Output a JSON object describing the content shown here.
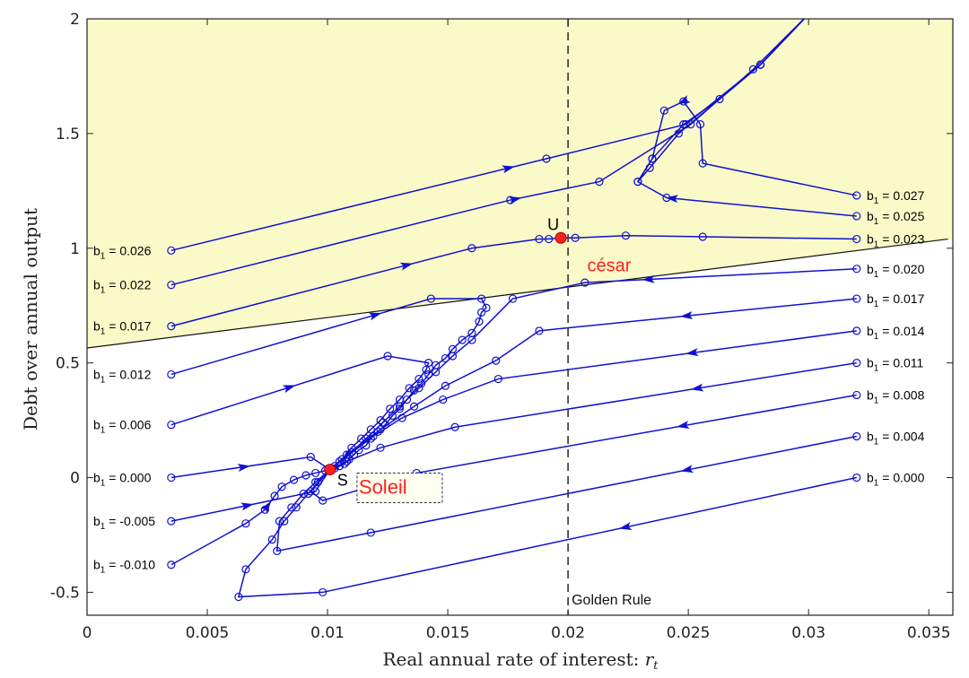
{
  "chart_data": {
    "type": "line",
    "xlabel": "Real annual rate of interest:",
    "xlabel_var": "r",
    "xlabel_sub": "t",
    "ylabel": "Debt over annual output",
    "xlim": [
      0,
      0.036
    ],
    "ylim": [
      -0.6,
      2.0
    ],
    "x_ticks": [
      "0",
      "0.005",
      "0.01",
      "0.015",
      "0.02",
      "0.025",
      "0.03",
      "0.035"
    ],
    "y_ticks": [
      "-0.5",
      "0",
      "0.5",
      "1",
      "1.5",
      "2"
    ],
    "grid": false,
    "shaded_region_color": "#fafac8",
    "series_color": "#1010d0",
    "golden_rule": {
      "x": 0.02,
      "label": "Golden Rule"
    },
    "boundary_line": {
      "x": [
        0,
        0.0358
      ],
      "y": [
        0.565,
        1.04
      ]
    },
    "points": [
      {
        "name": "U",
        "label": "U",
        "x": 0.0197,
        "y": 1.045,
        "color": "#ff2020"
      },
      {
        "name": "S",
        "label": "S",
        "x": 0.0101,
        "y": 0.035,
        "color": "#ff2020"
      }
    ],
    "annotations": [
      {
        "name": "cesar",
        "text": "césar",
        "x": 0.0208,
        "y": 0.9,
        "color": "#ff2020"
      },
      {
        "name": "soleil",
        "text": "Soleil",
        "x": 0.0113,
        "y": -0.07,
        "color": "#ff2020",
        "boxed": true
      }
    ],
    "left_labels": [
      {
        "text": "b",
        "sub": "1",
        "value": " = 0.026",
        "y": 0.99
      },
      {
        "text": "b",
        "sub": "1",
        "value": " = 0.022",
        "y": 0.84
      },
      {
        "text": "b",
        "sub": "1",
        "value": " = 0.017",
        "y": 0.66
      },
      {
        "text": "b",
        "sub": "1",
        "value": " = 0.012",
        "y": 0.45
      },
      {
        "text": "b",
        "sub": "1",
        "value": " = 0.006",
        "y": 0.23
      },
      {
        "text": "b",
        "sub": "1",
        "value": " = 0.000",
        "y": 0.0
      },
      {
        "text": "b",
        "sub": "1",
        "value": " = -0.005",
        "y": -0.19
      },
      {
        "text": "b",
        "sub": "1",
        "value": " = -0.010",
        "y": -0.38
      }
    ],
    "right_labels": [
      {
        "text": "b",
        "sub": "1",
        "value": " = 0.027",
        "y": 1.23
      },
      {
        "text": "b",
        "sub": "1",
        "value": " = 0.025",
        "y": 1.14
      },
      {
        "text": "b",
        "sub": "1",
        "value": " = 0.023",
        "y": 1.04
      },
      {
        "text": "b",
        "sub": "1",
        "value": " = 0.020",
        "y": 0.91
      },
      {
        "text": "b",
        "sub": "1",
        "value": " = 0.017",
        "y": 0.78
      },
      {
        "text": "b",
        "sub": "1",
        "value": " = 0.014",
        "y": 0.64
      },
      {
        "text": "b",
        "sub": "1",
        "value": " = 0.011",
        "y": 0.5
      },
      {
        "text": "b",
        "sub": "1",
        "value": " = 0.008",
        "y": 0.36
      },
      {
        "text": "b",
        "sub": "1",
        "value": " = 0.004",
        "y": 0.18
      },
      {
        "text": "b",
        "sub": "1",
        "value": " = 0.000",
        "y": 0.0
      }
    ],
    "series": [
      {
        "x": [
          0.0035,
          0.0191,
          0.0249,
          0.028,
          0.03
        ],
        "y": [
          0.99,
          1.39,
          1.54,
          1.8,
          2.02
        ],
        "arrow_at": 0.5
      },
      {
        "x": [
          0.0035,
          0.0176,
          0.0213,
          0.0251,
          0.0277,
          0.03
        ],
        "y": [
          0.84,
          1.21,
          1.29,
          1.54,
          1.78,
          2.02
        ],
        "arrow_at": 0.5
      },
      {
        "x": [
          0.0035,
          0.016,
          0.0188,
          0.0192,
          0.0197,
          0.0203,
          0.0224,
          0.0256,
          0.032
        ],
        "y": [
          0.66,
          1.0,
          1.04,
          1.04,
          1.045,
          1.045,
          1.055,
          1.05,
          1.04
        ],
        "arrow_at": 0.35
      },
      {
        "x": [
          0.0035,
          0.0143,
          0.0164,
          0.0166,
          0.0164,
          0.0163,
          0.016,
          0.0156,
          0.0152,
          0.0149,
          0.0145,
          0.0142,
          0.0139,
          0.0136,
          0.0133,
          0.013,
          0.0127,
          0.0124,
          0.0121,
          0.0118,
          0.0116,
          0.0113,
          0.0111,
          0.0109,
          0.0107,
          0.0105,
          0.0103,
          0.0101
        ],
        "y": [
          0.45,
          0.78,
          0.78,
          0.74,
          0.72,
          0.68,
          0.63,
          0.6,
          0.56,
          0.52,
          0.49,
          0.45,
          0.41,
          0.38,
          0.34,
          0.3,
          0.27,
          0.23,
          0.2,
          0.17,
          0.14,
          0.12,
          0.1,
          0.08,
          0.06,
          0.05,
          0.04,
          0.035
        ],
        "arrow_at": 0.38
      },
      {
        "x": [
          0.0035,
          0.0125,
          0.0142,
          0.0141,
          0.0138,
          0.0134,
          0.013,
          0.0126,
          0.0122,
          0.0118,
          0.0114,
          0.011,
          0.0106,
          0.0103,
          0.0101
        ],
        "y": [
          0.23,
          0.53,
          0.5,
          0.47,
          0.43,
          0.39,
          0.34,
          0.3,
          0.25,
          0.21,
          0.17,
          0.13,
          0.08,
          0.05,
          0.035
        ],
        "arrow_at": 0.3
      },
      {
        "x": [
          0.0035,
          0.0093,
          0.0101
        ],
        "y": [
          0.0,
          0.09,
          0.035
        ],
        "arrow_at": 0.45
      },
      {
        "x": [
          0.0035,
          0.0095,
          0.0101
        ],
        "y": [
          -0.19,
          -0.06,
          0.035
        ],
        "arrow_at": 0.45
      },
      {
        "x": [
          0.0035,
          0.0066,
          0.0074,
          0.0078,
          0.0081,
          0.0086,
          0.0091,
          0.0095,
          0.0099,
          0.0101
        ],
        "y": [
          -0.38,
          -0.2,
          -0.14,
          -0.08,
          -0.04,
          -0.01,
          0.01,
          0.02,
          0.03,
          0.035
        ],
        "arrow_at": 0.6
      },
      {
        "x": [
          0.032,
          0.0256,
          0.0255,
          0.0248,
          0.024,
          0.0235,
          0.0229,
          0.0234,
          0.0246,
          0.028,
          0.03
        ],
        "y": [
          1.23,
          1.37,
          1.54,
          1.64,
          1.6,
          1.39,
          1.29,
          1.35,
          1.5,
          1.8,
          2.02
        ],
        "arrow_at": 0.4
      },
      {
        "x": [
          0.032,
          0.0241,
          0.0229,
          0.0235,
          0.0248,
          0.0263,
          0.028,
          0.03
        ],
        "y": [
          1.14,
          1.22,
          1.29,
          1.39,
          1.54,
          1.65,
          1.8,
          2.02
        ],
        "arrow_at": 0.4
      },
      {
        "x": [
          0.032,
          0.0207,
          0.0177,
          0.016,
          0.0152,
          0.0145,
          0.0138,
          0.013,
          0.0123,
          0.0116,
          0.011,
          0.0105,
          0.0101
        ],
        "y": [
          0.91,
          0.85,
          0.78,
          0.6,
          0.53,
          0.46,
          0.39,
          0.31,
          0.24,
          0.17,
          0.11,
          0.07,
          0.035
        ],
        "arrow_at": 0.35
      },
      {
        "x": [
          0.032,
          0.0188,
          0.017,
          0.0149,
          0.0136,
          0.0122,
          0.0108,
          0.0101
        ],
        "y": [
          0.78,
          0.64,
          0.51,
          0.4,
          0.31,
          0.21,
          0.1,
          0.035
        ],
        "arrow_at": 0.3
      },
      {
        "x": [
          0.032,
          0.0171,
          0.0148,
          0.0131,
          0.0119,
          0.0109,
          0.0101
        ],
        "y": [
          0.64,
          0.43,
          0.34,
          0.26,
          0.18,
          0.1,
          0.035
        ],
        "arrow_at": 0.3
      },
      {
        "x": [
          0.032,
          0.0153,
          0.0122,
          0.0108,
          0.0101
        ],
        "y": [
          0.5,
          0.22,
          0.13,
          0.07,
          0.035
        ],
        "arrow_at": 0.3
      },
      {
        "x": [
          0.032,
          0.0137,
          0.0098,
          0.0093,
          0.0101
        ],
        "y": [
          0.36,
          0.02,
          -0.1,
          -0.06,
          0.035
        ],
        "arrow_at": 0.3
      },
      {
        "x": [
          0.032,
          0.0118,
          0.0079,
          0.008,
          0.0085,
          0.009,
          0.0095,
          0.0101
        ],
        "y": [
          0.18,
          -0.24,
          -0.32,
          -0.19,
          -0.13,
          -0.07,
          -0.02,
          0.035
        ],
        "arrow_at": 0.25
      },
      {
        "x": [
          0.032,
          0.0098,
          0.0063,
          0.0066,
          0.0077,
          0.0082,
          0.0087,
          0.0092,
          0.0096,
          0.0101
        ],
        "y": [
          0.0,
          -0.5,
          -0.52,
          -0.4,
          -0.27,
          -0.19,
          -0.13,
          -0.07,
          -0.02,
          0.035
        ],
        "arrow_at": 0.3
      }
    ]
  }
}
